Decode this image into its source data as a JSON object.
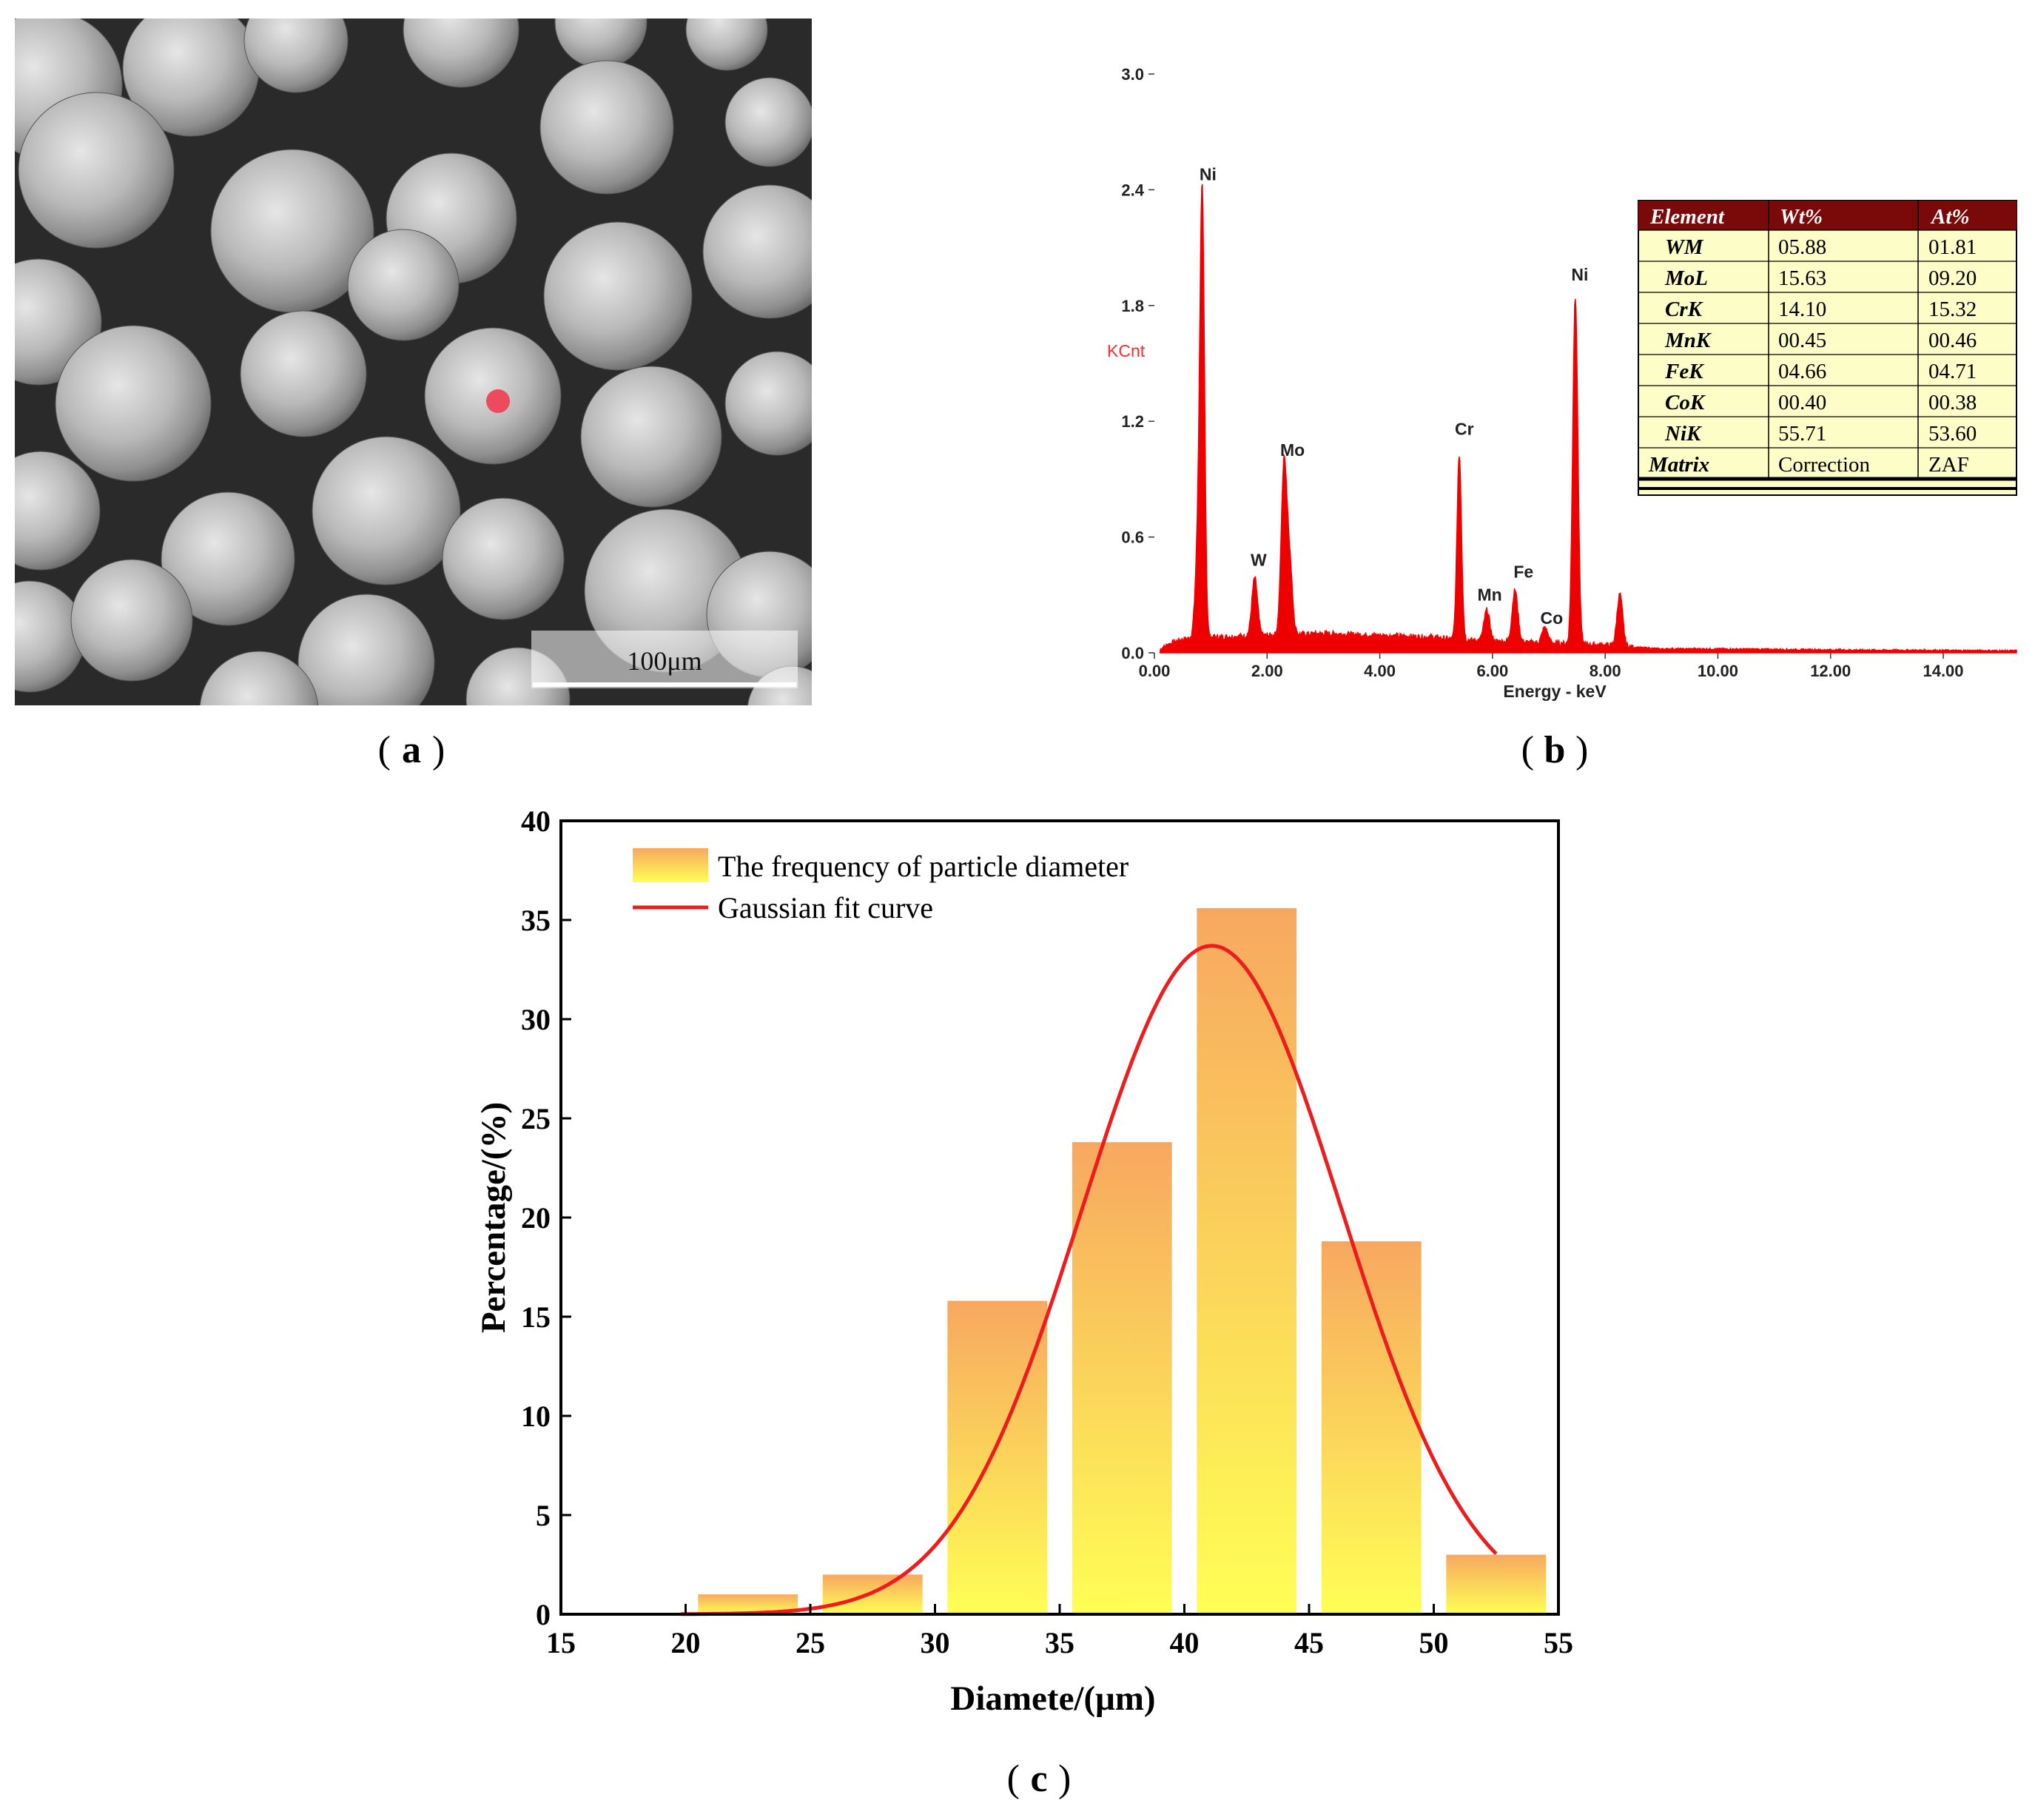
{
  "panels": {
    "a": {
      "label": "a",
      "scale_bar": "100μm"
    },
    "b": {
      "label": "b"
    },
    "c": {
      "label": "c"
    }
  },
  "eds_table": {
    "headers": [
      "Element",
      "Wt%",
      "At%"
    ],
    "rows": [
      [
        "WM",
        "05.88",
        "01.81"
      ],
      [
        "MoL",
        "15.63",
        "09.20"
      ],
      [
        "CrK",
        "14.10",
        "15.32"
      ],
      [
        "MnK",
        "00.45",
        "00.46"
      ],
      [
        "FeK",
        "04.66",
        "04.71"
      ],
      [
        "CoK",
        "00.40",
        "00.38"
      ],
      [
        "NiK",
        "55.71",
        "53.60"
      ],
      [
        "Matrix",
        "Correction",
        "ZAF"
      ]
    ]
  },
  "colors": {
    "spectrum": "#ee0000",
    "table_header": "#7a0a0a",
    "table_body": "#fdfdc8",
    "bar_top": "#f7a860",
    "bar_bottom": "#ffff55",
    "fit_curve": "#ee1c1c",
    "sem_background": "#2a2a2a",
    "analysis_spot": "#ee4a5e"
  },
  "chart_data": [
    {
      "type": "line",
      "title": "",
      "xlabel": "Energy - keV",
      "ylabel": "KCnt",
      "xlim": [
        0,
        15.3
      ],
      "ylim": [
        0,
        3.0
      ],
      "x_ticks": [
        "0.00",
        "2.00",
        "4.00",
        "6.00",
        "8.00",
        "10.00",
        "12.00",
        "14.00"
      ],
      "y_ticks": [
        "0.0",
        "0.6",
        "1.2",
        "1.8",
        "2.4",
        "3.0"
      ],
      "baseline": [
        [
          0.1,
          0.02
        ],
        [
          0.3,
          0.05
        ],
        [
          0.5,
          0.07
        ],
        [
          1.0,
          0.08
        ],
        [
          2.0,
          0.09
        ],
        [
          3.0,
          0.1
        ],
        [
          4.0,
          0.09
        ],
        [
          5.0,
          0.08
        ],
        [
          5.25,
          0.07
        ],
        [
          6.0,
          0.06
        ],
        [
          7.0,
          0.05
        ],
        [
          8.0,
          0.04
        ],
        [
          8.4,
          0.03
        ],
        [
          9.0,
          0.02
        ],
        [
          10.0,
          0.02
        ],
        [
          12.0,
          0.015
        ],
        [
          15.3,
          0.01
        ]
      ],
      "peaks": [
        {
          "name": "Ni",
          "energy": 0.85,
          "height": 2.15,
          "width": 0.04
        },
        {
          "name": "Ni",
          "energy": 0.78,
          "height": 0.5,
          "width": 0.05
        },
        {
          "name": "W",
          "energy": 1.78,
          "height": 0.3,
          "width": 0.05
        },
        {
          "name": "Mo",
          "energy": 2.3,
          "height": 0.87,
          "width": 0.05
        },
        {
          "name": "Mo",
          "energy": 2.4,
          "height": 0.35,
          "width": 0.05
        },
        {
          "name": "Cr",
          "energy": 5.41,
          "height": 0.96,
          "width": 0.04
        },
        {
          "name": "Mn",
          "energy": 5.9,
          "height": 0.16,
          "width": 0.05
        },
        {
          "name": "Fe",
          "energy": 6.4,
          "height": 0.27,
          "width": 0.05
        },
        {
          "name": "Co",
          "energy": 6.93,
          "height": 0.08,
          "width": 0.05
        },
        {
          "name": "Ni",
          "energy": 7.47,
          "height": 1.8,
          "width": 0.045
        },
        {
          "name": "Ni",
          "energy": 8.26,
          "height": 0.27,
          "width": 0.05
        }
      ],
      "peak_labels": [
        {
          "text": "Ni",
          "energy": 0.95,
          "level": 2.45
        },
        {
          "text": "W",
          "energy": 1.85,
          "level": 0.45
        },
        {
          "text": "Mo",
          "energy": 2.45,
          "level": 1.02
        },
        {
          "text": "Cr",
          "energy": 5.5,
          "level": 1.13
        },
        {
          "text": "Mn",
          "energy": 5.95,
          "level": 0.27
        },
        {
          "text": "Fe",
          "energy": 6.55,
          "level": 0.39
        },
        {
          "text": "Co",
          "energy": 7.05,
          "level": 0.15
        },
        {
          "text": "Ni",
          "energy": 7.55,
          "level": 1.93
        }
      ]
    },
    {
      "type": "bar",
      "title": "",
      "xlabel": "Diamete/(μm)",
      "ylabel": "Percentage/(%)",
      "xlim": [
        15,
        55
      ],
      "ylim": [
        0,
        40
      ],
      "x_ticks": [
        15,
        20,
        25,
        30,
        35,
        40,
        45,
        50,
        55
      ],
      "y_ticks": [
        0,
        5,
        10,
        15,
        20,
        25,
        30,
        35,
        40
      ],
      "bins": [
        {
          "from": 20.5,
          "to": 24.5,
          "value": 1.0
        },
        {
          "from": 25.5,
          "to": 29.5,
          "value": 2.0
        },
        {
          "from": 30.5,
          "to": 34.5,
          "value": 15.8
        },
        {
          "from": 35.5,
          "to": 39.5,
          "value": 23.8
        },
        {
          "from": 40.5,
          "to": 44.5,
          "value": 35.6
        },
        {
          "from": 45.5,
          "to": 49.5,
          "value": 18.8
        },
        {
          "from": 50.5,
          "to": 54.5,
          "value": 3.0
        }
      ],
      "gaussian_fit": {
        "amplitude": 33.7,
        "center": 41.1,
        "sigma": 5.2,
        "x_range": [
          19.8,
          52.5
        ]
      },
      "legend": [
        "The frequency of particle diameter",
        "Gaussian fit curve"
      ],
      "legend_position": "top-left"
    }
  ]
}
